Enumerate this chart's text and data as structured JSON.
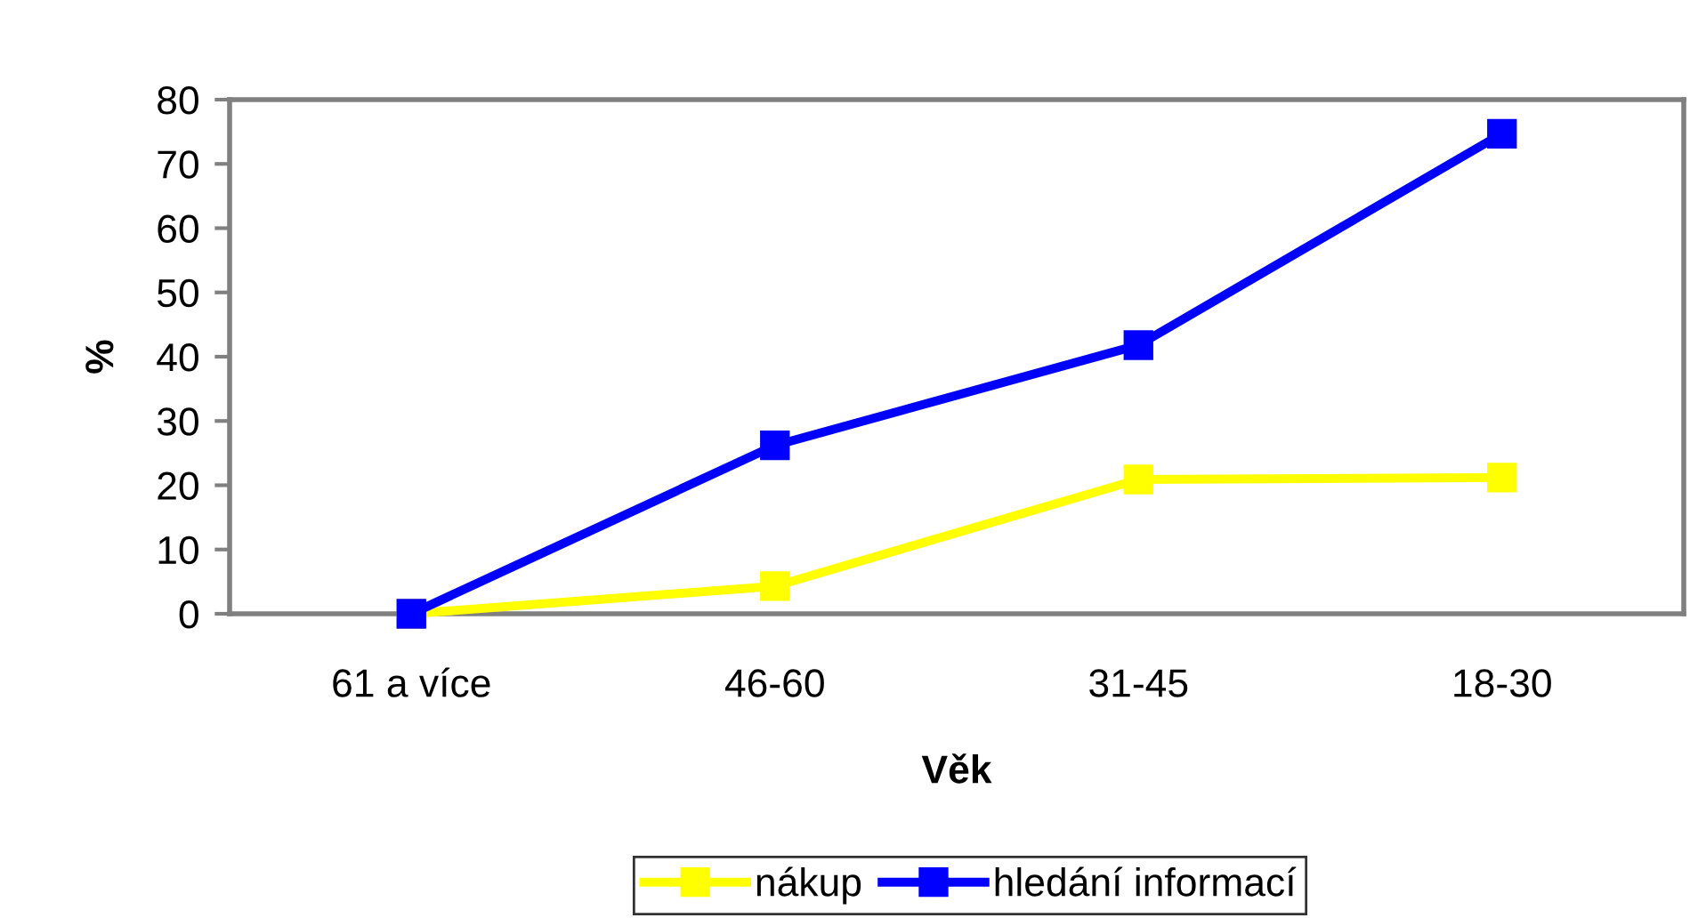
{
  "chart_data": {
    "type": "line",
    "xlabel": "Věk",
    "ylabel": "%",
    "categories": [
      "61 a více",
      "46-60",
      "31-45",
      "18-30"
    ],
    "series": [
      {
        "name": "nákup",
        "color": "#ffff00",
        "values": [
          0,
          4.3,
          20.9,
          21.2
        ]
      },
      {
        "name": "hledání informací",
        "color": "#0000ff",
        "values": [
          0,
          26.2,
          41.8,
          74.7
        ]
      }
    ],
    "ylim": [
      0,
      80
    ],
    "yticks": [
      0,
      10,
      20,
      30,
      40,
      50,
      60,
      70,
      80
    ],
    "grid": false,
    "legend": "bottom",
    "marker": "square",
    "line_style": "solid"
  }
}
